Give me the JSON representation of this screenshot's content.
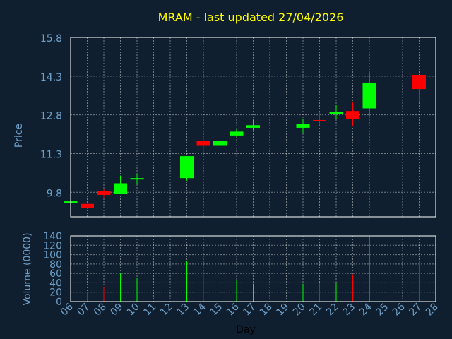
{
  "chart_data": {
    "type": "candlestick",
    "title": "MRAM - last updated 27/04/2026",
    "price_ylabel": "Price",
    "volume_ylabel": "Volume (0000)",
    "xlabel": "Day",
    "x_ticks": [
      "06",
      "07",
      "08",
      "09",
      "10",
      "11",
      "12",
      "13",
      "14",
      "15",
      "16",
      "17",
      "18",
      "19",
      "20",
      "21",
      "22",
      "23",
      "24",
      "25",
      "26",
      "27",
      "28"
    ],
    "price_ticks": [
      "15.8",
      "14.3",
      "12.8",
      "11.3",
      "9.8"
    ],
    "price_ylim": [
      8.85,
      15.8
    ],
    "volume_ticks": [
      "140",
      "120",
      "100",
      "80",
      "60",
      "40",
      "20",
      "0"
    ],
    "volume_ylim": [
      0,
      140
    ],
    "grid": true,
    "colors": {
      "background": "#0f1f2f",
      "up": "#00ff00",
      "down": "#ff0000",
      "title": "#ffff00",
      "axis_text": "#6fa0c8",
      "grid": "#c8c8c8",
      "frame": "#ffffff"
    },
    "candles": [
      {
        "day": "06",
        "open": 9.4,
        "close": 9.45,
        "high": 9.45,
        "low": 9.4,
        "volume": 0
      },
      {
        "day": "07",
        "open": 9.35,
        "close": 9.2,
        "high": 9.35,
        "low": 9.15,
        "volume": 20
      },
      {
        "day": "08",
        "open": 9.85,
        "close": 9.7,
        "high": 9.95,
        "low": 9.6,
        "volume": 32
      },
      {
        "day": "09",
        "open": 9.75,
        "close": 10.15,
        "high": 10.45,
        "low": 9.75,
        "volume": 60
      },
      {
        "day": "10",
        "open": 10.3,
        "close": 10.35,
        "high": 10.5,
        "low": 10.1,
        "volume": 50
      },
      {
        "day": "13",
        "open": 10.35,
        "close": 11.2,
        "high": 11.2,
        "low": 10.25,
        "volume": 87
      },
      {
        "day": "14",
        "open": 11.8,
        "close": 11.6,
        "high": 11.95,
        "low": 11.3,
        "volume": 65
      },
      {
        "day": "15",
        "open": 11.6,
        "close": 11.8,
        "high": 11.85,
        "low": 11.45,
        "volume": 40
      },
      {
        "day": "16",
        "open": 12.0,
        "close": 12.15,
        "high": 12.25,
        "low": 11.95,
        "volume": 45
      },
      {
        "day": "17",
        "open": 12.3,
        "close": 12.4,
        "high": 12.6,
        "low": 12.2,
        "volume": 38
      },
      {
        "day": "20",
        "open": 12.3,
        "close": 12.45,
        "high": 12.65,
        "low": 12.1,
        "volume": 38
      },
      {
        "day": "21",
        "open": 12.6,
        "close": 12.55,
        "high": 12.9,
        "low": 12.4,
        "volume": 40
      },
      {
        "day": "22",
        "open": 12.85,
        "close": 12.9,
        "high": 13.2,
        "low": 12.65,
        "volume": 40
      },
      {
        "day": "23",
        "open": 12.95,
        "close": 12.65,
        "high": 13.3,
        "low": 12.35,
        "volume": 58
      },
      {
        "day": "24",
        "open": 13.05,
        "close": 14.05,
        "high": 14.4,
        "low": 12.75,
        "volume": 137
      },
      {
        "day": "27",
        "open": 14.35,
        "close": 13.8,
        "high": 14.35,
        "low": 13.3,
        "volume": 87
      }
    ]
  }
}
